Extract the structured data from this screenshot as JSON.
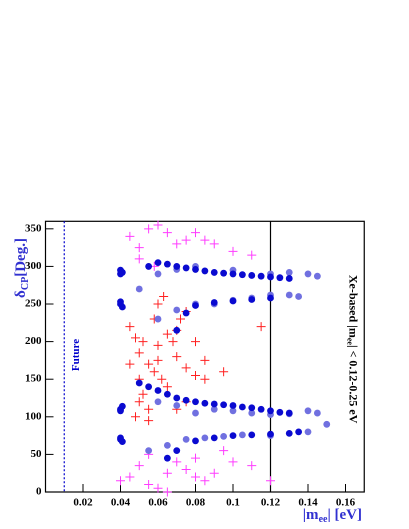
{
  "chart_data": {
    "type": "scatter",
    "y_label": {
      "symbol": "δ",
      "subscript": "CP",
      "unit": "[Deg.]"
    },
    "x_label": {
      "prefix": "|m",
      "subscript": "ee",
      "unit": "| [eV]"
    },
    "annotation": {
      "prefix": "Xe-based |m",
      "subscript": "ee",
      "suffix": "| < 0.12-0.25 eV"
    },
    "future_line": {
      "x": 0.01,
      "label": "Future",
      "color": "#0000cc"
    },
    "limit_line": {
      "x": 0.12,
      "color": "#000000"
    },
    "xlim": [
      0,
      0.17
    ],
    "ylim": [
      0,
      360
    ],
    "xticks": [
      0.02,
      0.04,
      0.06,
      0.08,
      0.1,
      0.12,
      0.14,
      0.16
    ],
    "yticks": [
      0,
      50,
      100,
      150,
      200,
      250,
      300,
      350
    ],
    "series": [
      {
        "marker": "cross",
        "color": "#ff3cff",
        "x": [
          0.045,
          0.05,
          0.055,
          0.06,
          0.065,
          0.07,
          0.075,
          0.08,
          0.085,
          0.09,
          0.1,
          0.11,
          0.05,
          0.058,
          0.045,
          0.05,
          0.055,
          0.06,
          0.065,
          0.07,
          0.075,
          0.08,
          0.085,
          0.09,
          0.1,
          0.11,
          0.12,
          0.055,
          0.065,
          0.08,
          0.095,
          0.04
        ],
        "values": [
          340,
          325,
          350,
          355,
          345,
          330,
          335,
          345,
          335,
          330,
          320,
          315,
          310,
          300,
          20,
          35,
          10,
          5,
          25,
          40,
          30,
          20,
          15,
          25,
          40,
          35,
          15,
          50,
          0,
          45,
          55,
          15
        ]
      },
      {
        "marker": "cross",
        "color": "#ff2020",
        "x": [
          0.045,
          0.048,
          0.05,
          0.052,
          0.055,
          0.058,
          0.06,
          0.062,
          0.065,
          0.068,
          0.07,
          0.072,
          0.075,
          0.05,
          0.052,
          0.055,
          0.058,
          0.06,
          0.065,
          0.07,
          0.075,
          0.08,
          0.085,
          0.08,
          0.085,
          0.048,
          0.05,
          0.055,
          0.07,
          0.075,
          0.095,
          0.115,
          0.06,
          0.045,
          0.063
        ],
        "values": [
          220,
          205,
          185,
          200,
          170,
          160,
          195,
          150,
          140,
          200,
          215,
          230,
          240,
          150,
          130,
          110,
          230,
          250,
          210,
          180,
          165,
          155,
          150,
          200,
          175,
          100,
          120,
          95,
          110,
          120,
          160,
          220,
          175,
          170,
          260
        ]
      },
      {
        "marker": "dot",
        "color": "#7070e0",
        "x": [
          0.05,
          0.06,
          0.07,
          0.08,
          0.1,
          0.12,
          0.13,
          0.14,
          0.145,
          0.06,
          0.07,
          0.08,
          0.09,
          0.1,
          0.11,
          0.12,
          0.13,
          0.135,
          0.06,
          0.07,
          0.08,
          0.09,
          0.1,
          0.11,
          0.12,
          0.13,
          0.14,
          0.145,
          0.055,
          0.065,
          0.075,
          0.085,
          0.095,
          0.105,
          0.12,
          0.14,
          0.15
        ],
        "values": [
          270,
          290,
          296,
          300,
          295,
          290,
          292,
          290,
          287,
          230,
          242,
          250,
          250,
          255,
          258,
          262,
          262,
          260,
          120,
          115,
          105,
          110,
          108,
          105,
          103,
          104,
          108,
          105,
          55,
          62,
          70,
          72,
          74,
          76,
          75,
          80,
          90
        ]
      },
      {
        "marker": "dot",
        "color": "#0a0ad0",
        "x": [
          0.04,
          0.04,
          0.041,
          0.04,
          0.041,
          0.04,
          0.04,
          0.041,
          0.04,
          0.04,
          0.041,
          0.04,
          0.055,
          0.06,
          0.065,
          0.07,
          0.075,
          0.08,
          0.085,
          0.09,
          0.095,
          0.1,
          0.105,
          0.11,
          0.115,
          0.12,
          0.125,
          0.13,
          0.05,
          0.055,
          0.06,
          0.065,
          0.07,
          0.075,
          0.08,
          0.085,
          0.09,
          0.095,
          0.1,
          0.105,
          0.11,
          0.115,
          0.12,
          0.125,
          0.13,
          0.065,
          0.07,
          0.08,
          0.09,
          0.1,
          0.11,
          0.12,
          0.13,
          0.135,
          0.07,
          0.075,
          0.08,
          0.09,
          0.1,
          0.11,
          0.12
        ],
        "values": [
          290,
          295,
          292,
          250,
          246,
          253,
          110,
          114,
          108,
          70,
          67,
          72,
          300,
          305,
          303,
          300,
          298,
          296,
          294,
          292,
          291,
          290,
          289,
          288,
          287,
          286,
          285,
          284,
          145,
          140,
          135,
          130,
          125,
          122,
          120,
          118,
          117,
          116,
          115,
          113,
          112,
          110,
          108,
          106,
          105,
          45,
          55,
          68,
          72,
          75,
          76,
          77,
          78,
          80,
          215,
          238,
          248,
          252,
          254,
          256,
          258
        ]
      }
    ]
  }
}
